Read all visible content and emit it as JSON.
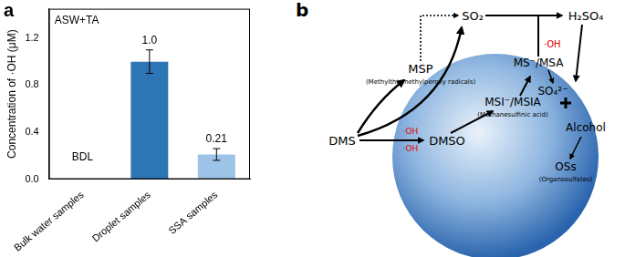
{
  "chart_data": {
    "type": "bar",
    "panel_label": "a",
    "annotation": "ASW+TA",
    "y_label": "Concentration of ·OH (μM)",
    "categories": [
      "Bulk water samples",
      "Droplet samples",
      "SSA samples"
    ],
    "values": [
      null,
      1.0,
      0.21
    ],
    "value_labels": [
      "BDL",
      "1.0",
      "0.21"
    ],
    "errors": [
      null,
      0.1,
      0.05
    ],
    "colors": [
      "#2e75b6",
      "#2e75b6",
      "#9dc3e6"
    ],
    "ylim": [
      0,
      1.45
    ],
    "yticks": [
      {
        "value": 0,
        "label": "0.0"
      },
      0.4,
      0.8,
      1.2
    ],
    "grid": false,
    "data_labels": true
  },
  "diagram": {
    "panel_label": "b",
    "oxidant": "·OH",
    "nodes": [
      {
        "label": "SO₂"
      },
      {
        "label": "H₂SO₄"
      },
      {
        "label": "MSP",
        "note": "(Methylthiomethylperoxy radicals)"
      },
      {
        "label": "DMS"
      },
      {
        "label": "DMSO"
      },
      {
        "label": "MSI⁻/MSIA",
        "note": "(Methanesulfinic acid)"
      },
      {
        "label": "MS⁻/MSA"
      },
      {
        "label": "SO₄²⁻"
      },
      {
        "label": "Alcohol"
      },
      {
        "label": "OSs",
        "note": "(Organosulfates)"
      }
    ],
    "edges": [
      [
        0,
        1
      ],
      [
        6,
        1
      ],
      [
        1,
        7
      ],
      [
        6,
        7
      ],
      [
        8,
        9
      ],
      [
        3,
        4
      ],
      [
        4,
        5
      ],
      [
        5,
        6
      ],
      [
        3,
        2
      ],
      [
        3,
        0
      ],
      [
        2,
        0
      ]
    ]
  }
}
